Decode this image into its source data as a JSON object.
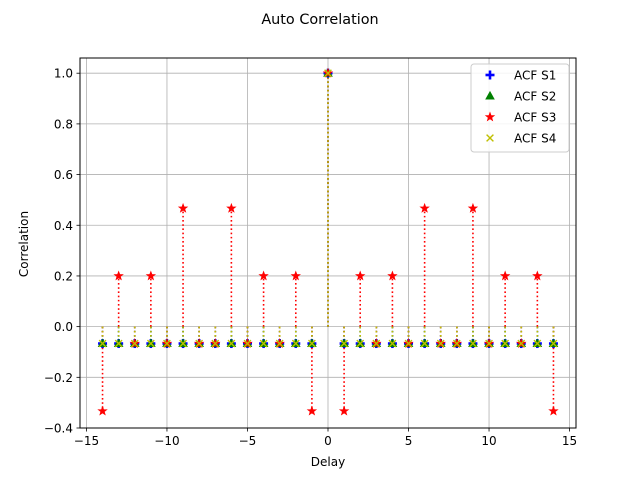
{
  "chart_data": {
    "type": "stem",
    "title": "Auto Correlation",
    "xlabel": "Delay",
    "ylabel": "Correlation",
    "xlim": [
      -15.4,
      15.4
    ],
    "ylim": [
      -0.4,
      1.06
    ],
    "xticks": [
      -15,
      -10,
      -5,
      0,
      5,
      10,
      15
    ],
    "xtick_labels": [
      "−15",
      "−10",
      "−5",
      "0",
      "5",
      "10",
      "15"
    ],
    "yticks": [
      -0.4,
      -0.2,
      0.0,
      0.2,
      0.4,
      0.6,
      0.8,
      1.0
    ],
    "ytick_labels": [
      "−0.4",
      "−0.2",
      "0.0",
      "0.2",
      "0.4",
      "0.6",
      "0.8",
      "1.0"
    ],
    "grid": true,
    "legend_position": "top-right",
    "x": [
      -14,
      -13,
      -12,
      -11,
      -10,
      -9,
      -8,
      -7,
      -6,
      -5,
      -4,
      -3,
      -2,
      -1,
      0,
      1,
      2,
      3,
      4,
      5,
      6,
      7,
      8,
      9,
      10,
      11,
      12,
      13,
      14
    ],
    "series": [
      {
        "name": "ACF S1",
        "color": "#0000ff",
        "marker": "plus",
        "values": [
          -0.0667,
          -0.0667,
          -0.0667,
          -0.0667,
          -0.0667,
          -0.0667,
          -0.0667,
          -0.0667,
          -0.0667,
          -0.0667,
          -0.0667,
          -0.0667,
          -0.0667,
          -0.0667,
          1.0,
          -0.0667,
          -0.0667,
          -0.0667,
          -0.0667,
          -0.0667,
          -0.0667,
          -0.0667,
          -0.0667,
          -0.0667,
          -0.0667,
          -0.0667,
          -0.0667,
          -0.0667,
          -0.0667
        ]
      },
      {
        "name": "ACF S2",
        "color": "#008000",
        "marker": "triangle",
        "values": [
          -0.0667,
          -0.0667,
          -0.0667,
          -0.0667,
          -0.0667,
          -0.0667,
          -0.0667,
          -0.0667,
          -0.0667,
          -0.0667,
          -0.0667,
          -0.0667,
          -0.0667,
          -0.0667,
          1.0,
          -0.0667,
          -0.0667,
          -0.0667,
          -0.0667,
          -0.0667,
          -0.0667,
          -0.0667,
          -0.0667,
          -0.0667,
          -0.0667,
          -0.0667,
          -0.0667,
          -0.0667,
          -0.0667
        ]
      },
      {
        "name": "ACF S3",
        "color": "#ff0000",
        "marker": "star",
        "values": [
          -0.3333,
          0.2,
          -0.0667,
          0.2,
          -0.0667,
          0.4667,
          -0.0667,
          -0.0667,
          0.4667,
          -0.0667,
          0.2,
          -0.0667,
          0.2,
          -0.3333,
          1.0,
          -0.3333,
          0.2,
          -0.0667,
          0.2,
          -0.0667,
          0.4667,
          -0.0667,
          -0.0667,
          0.4667,
          -0.0667,
          0.2,
          -0.0667,
          0.2,
          -0.3333
        ]
      },
      {
        "name": "ACF S4",
        "color": "#bfbf00",
        "marker": "x",
        "values": [
          -0.0667,
          -0.0667,
          -0.0667,
          -0.0667,
          -0.0667,
          -0.0667,
          -0.0667,
          -0.0667,
          -0.0667,
          -0.0667,
          -0.0667,
          -0.0667,
          -0.0667,
          -0.0667,
          1.0,
          -0.0667,
          -0.0667,
          -0.0667,
          -0.0667,
          -0.0667,
          -0.0667,
          -0.0667,
          -0.0667,
          -0.0667,
          -0.0667,
          -0.0667,
          -0.0667,
          -0.0667,
          -0.0667
        ]
      }
    ]
  }
}
